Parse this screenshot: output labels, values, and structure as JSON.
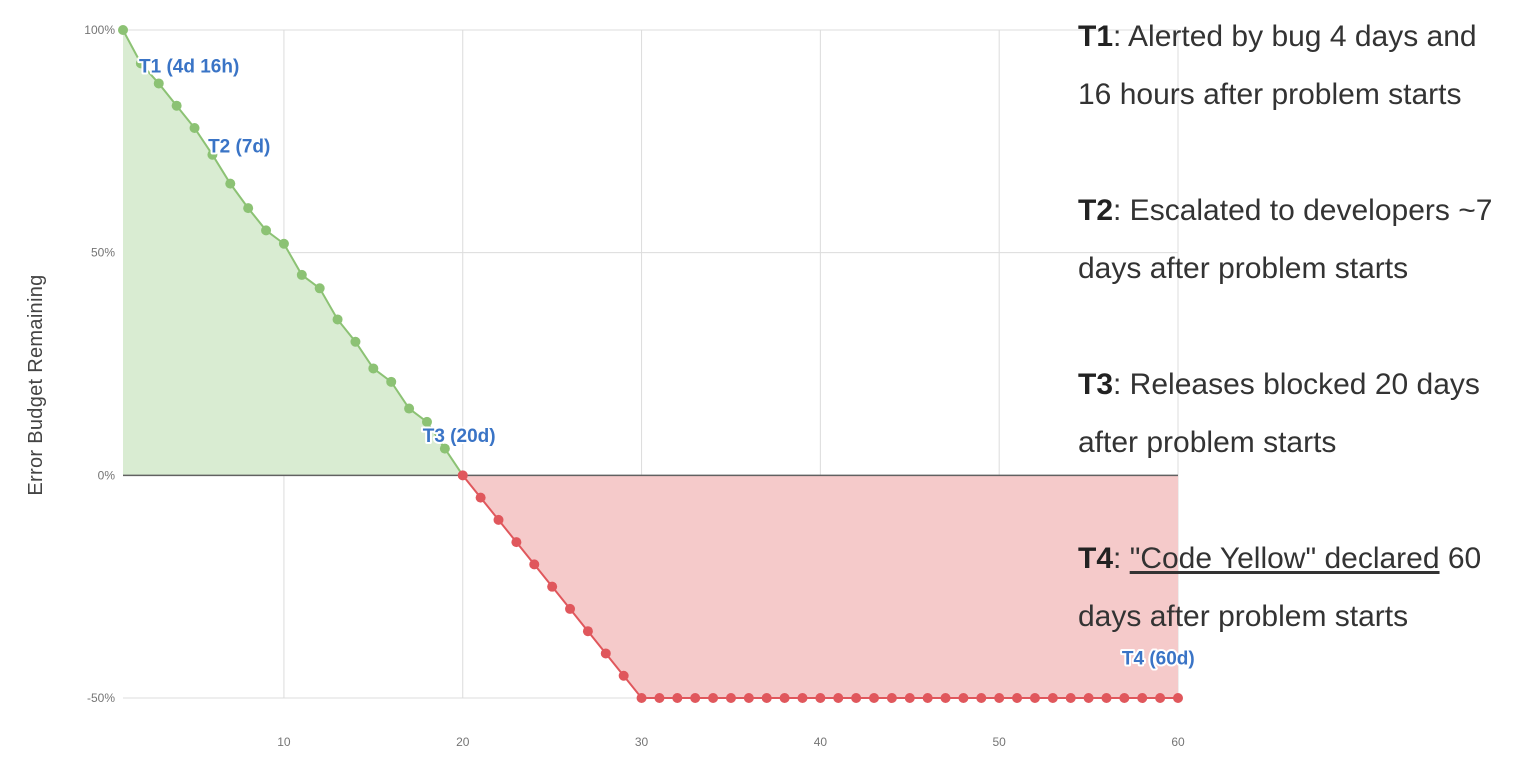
{
  "chart_data": {
    "type": "area",
    "ylabel": "Error Budget Remaining",
    "xlabel": "",
    "xlim": [
      1,
      60
    ],
    "ylim": [
      -50,
      100
    ],
    "x_ticks": [
      10,
      20,
      30,
      40,
      50,
      60
    ],
    "y_ticks": [
      {
        "value": 100,
        "label": "100%"
      },
      {
        "value": 50,
        "label": "50%"
      },
      {
        "value": 0,
        "label": "0%"
      },
      {
        "value": -50,
        "label": "-50%"
      }
    ],
    "grid": true,
    "colors": {
      "positive_line": "#8cc274",
      "positive_fill": "#d9ecd2",
      "negative_line": "#e0575c",
      "negative_fill": "#f5caca",
      "zero_line": "#616161",
      "grid": "#dcdcdc",
      "annotation": "#3a74c6"
    },
    "series": [
      {
        "x": [
          1,
          2,
          3,
          4,
          5,
          6,
          7,
          8,
          9,
          10,
          11,
          12,
          13,
          14,
          15,
          16,
          17,
          18,
          19,
          20
        ],
        "values": [
          100,
          92.5,
          88,
          83,
          78,
          72,
          65.5,
          60,
          55,
          52,
          45,
          42,
          35,
          30,
          24,
          21,
          15,
          12,
          6,
          0
        ]
      },
      {
        "x": [
          20,
          21,
          22,
          23,
          24,
          25,
          26,
          27,
          28,
          29,
          30,
          31,
          32,
          33,
          34,
          35,
          36,
          37,
          38,
          39,
          40,
          41,
          42,
          43,
          44,
          45,
          46,
          47,
          48,
          49,
          50,
          51,
          52,
          53,
          54,
          55,
          56,
          57,
          58,
          59,
          60
        ],
        "values": [
          0,
          -5,
          -10,
          -15,
          -20,
          -25,
          -30,
          -35,
          -40,
          -45,
          -50,
          -50,
          -50,
          -50,
          -50,
          -50,
          -50,
          -50,
          -50,
          -50,
          -50,
          -50,
          -50,
          -50,
          -50,
          -50,
          -50,
          -50,
          -50,
          -50,
          -50,
          -50,
          -50,
          -50,
          -50,
          -50,
          -50,
          -50,
          -50,
          -50,
          -50
        ]
      }
    ],
    "annotations": [
      {
        "text": "T1 (4d 16h)",
        "x": 4.7,
        "y": 90.5
      },
      {
        "text": "T2 (7d)",
        "x": 7.5,
        "y": 72.5
      },
      {
        "text": "T3 (20d)",
        "x": 19.8,
        "y": 7.5
      },
      {
        "text": "T4 (60d)",
        "x": 58.9,
        "y": -42.5
      }
    ]
  },
  "notes": [
    {
      "key": "T1",
      "text_plain": ": Alerted by bug 4 days and 16 hours after problem starts",
      "underlined": "",
      "text_after": ""
    },
    {
      "key": "T2",
      "text_plain": ": Escalated to developers ~7 days after problem starts",
      "underlined": "",
      "text_after": ""
    },
    {
      "key": "T3",
      "text_plain": ": Releases blocked 20 days after problem starts",
      "underlined": "",
      "text_after": ""
    },
    {
      "key": "T4",
      "text_plain": ": ",
      "underlined": "\"Code Yellow\" declared",
      "text_after": " 60 days after problem starts"
    }
  ]
}
